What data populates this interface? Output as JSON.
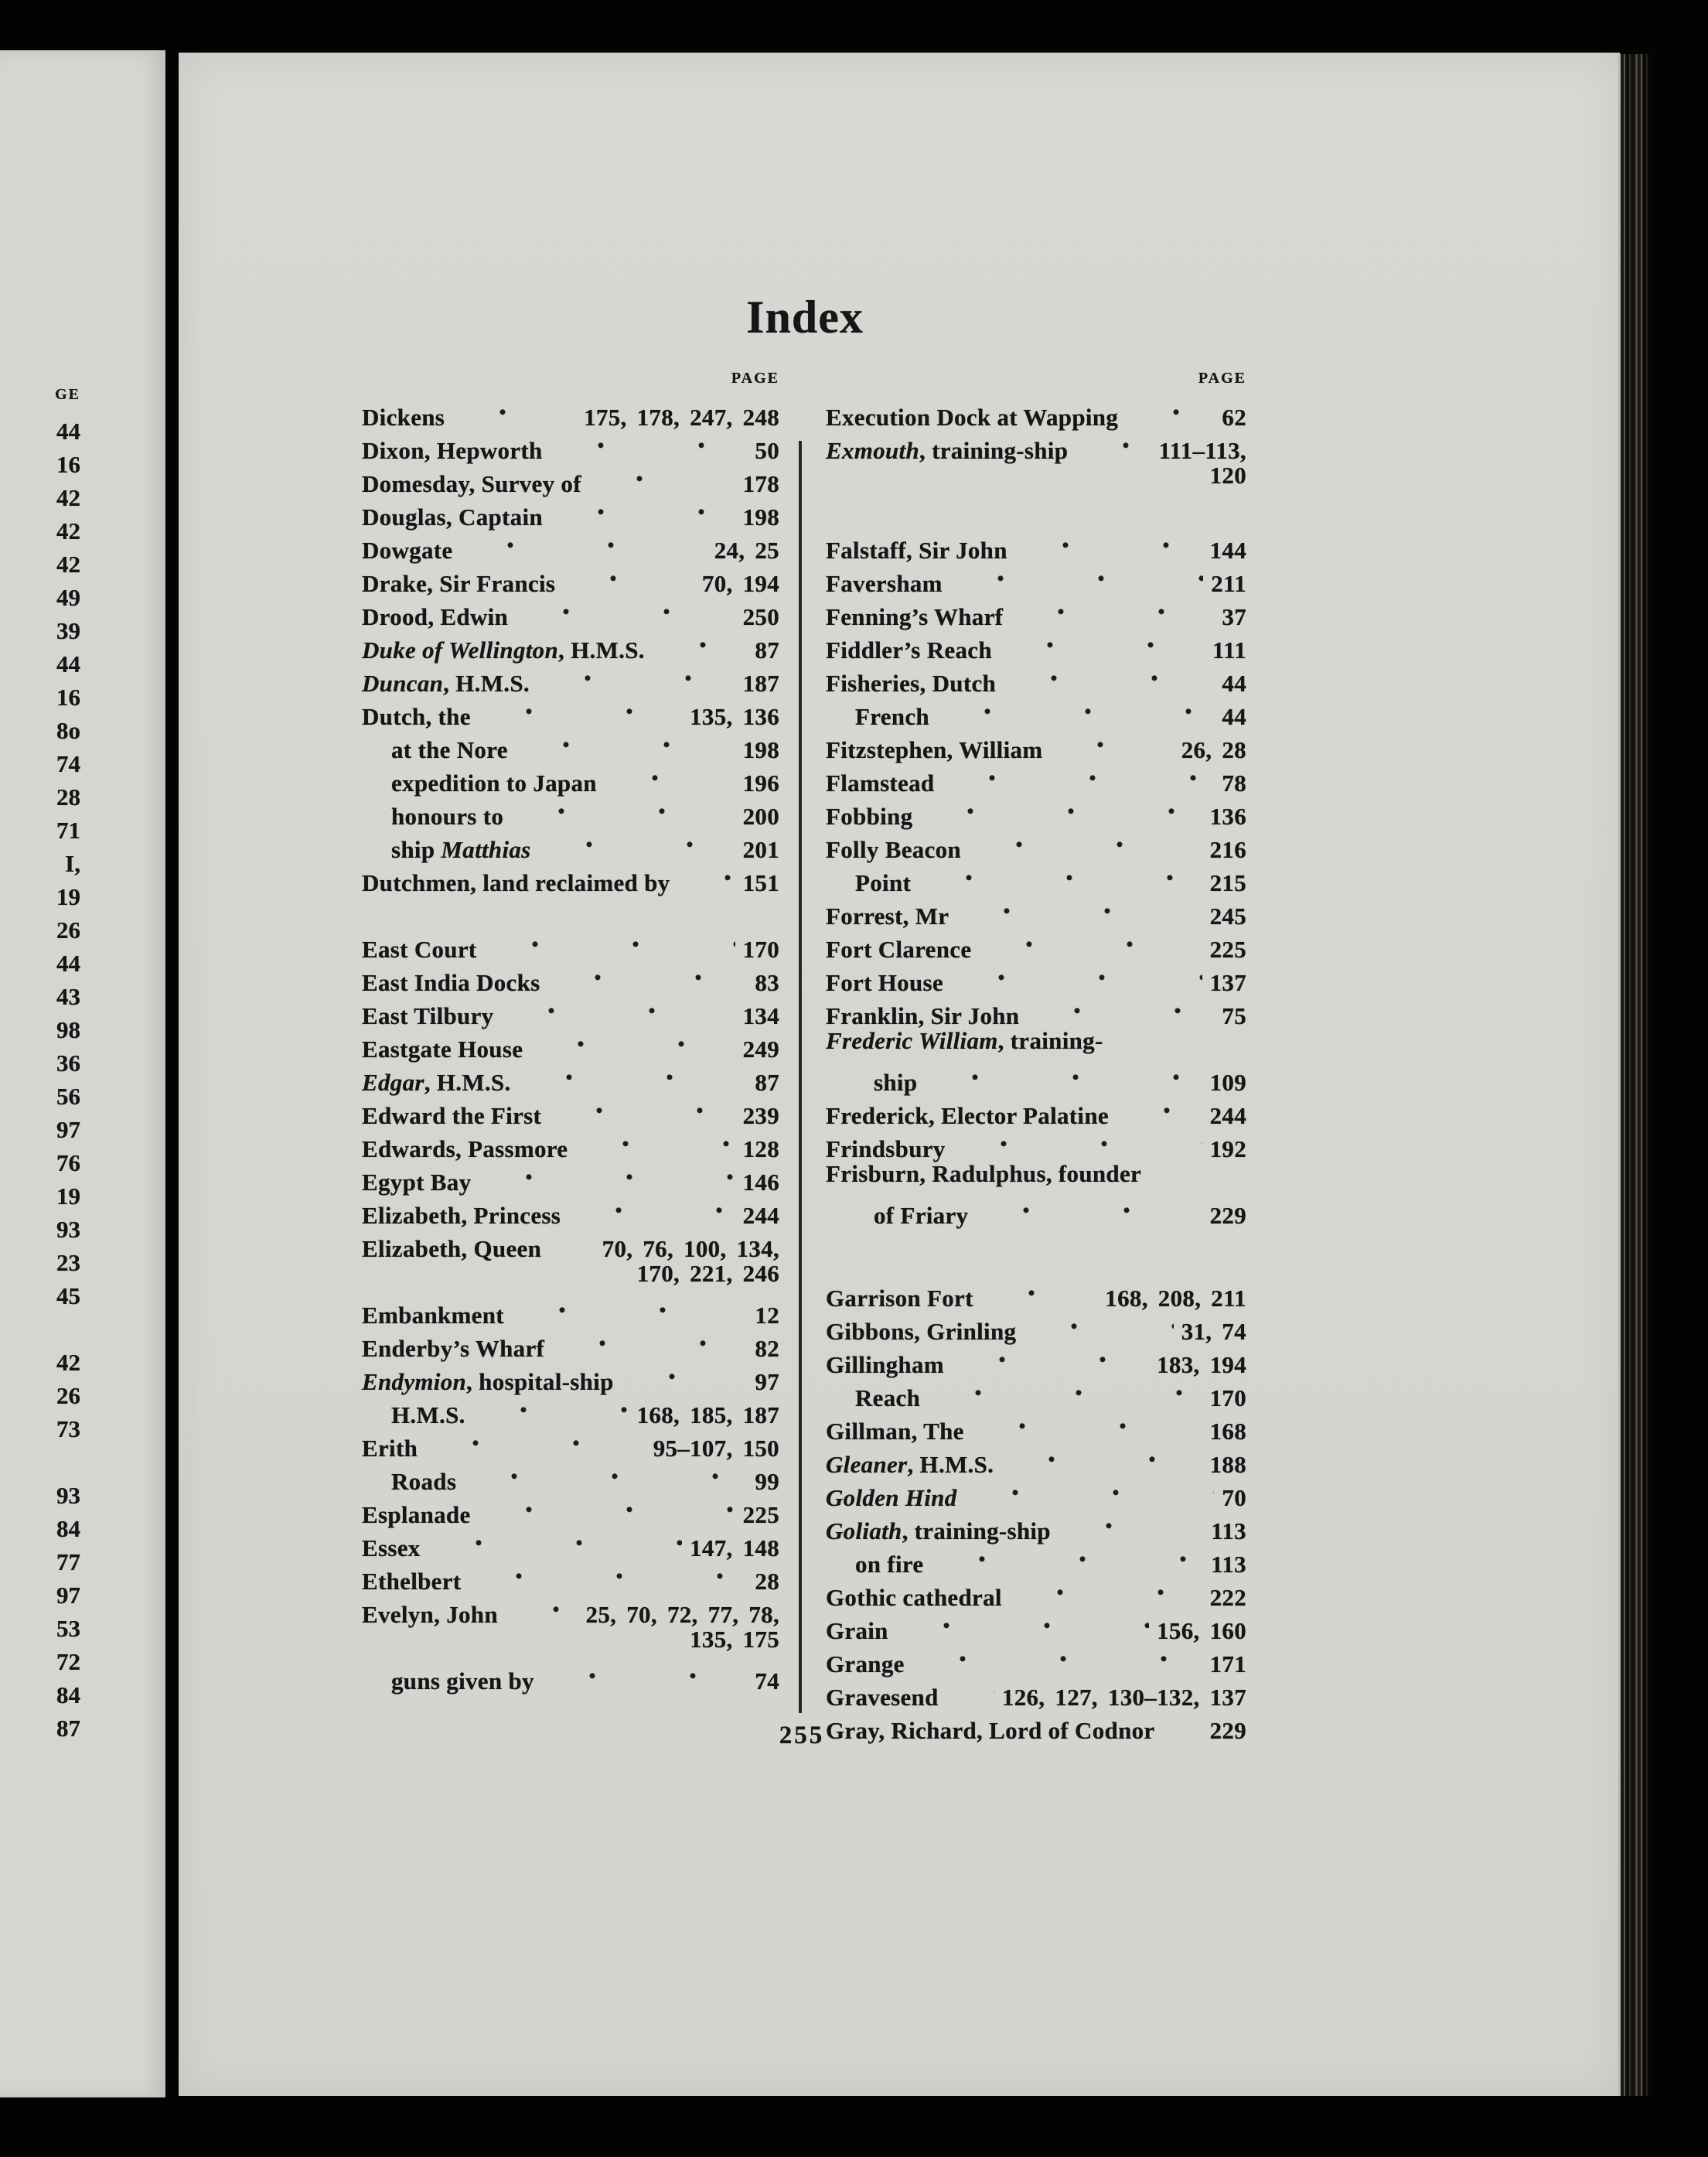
{
  "page_title": "Index",
  "page_number": "255",
  "headers": {
    "left": "PAGE",
    "right": "PAGE"
  },
  "colors": {
    "paper": "#d6d5d1",
    "ink": "#161616",
    "background": "#030303"
  },
  "left_margin_numbers": [
    "GE",
    "44",
    "16",
    "42",
    "42",
    "42",
    "49",
    "39",
    "44",
    "16",
    "8o",
    "74",
    "28",
    "71",
    "I,",
    "19",
    "26",
    "44",
    "43",
    "98",
    "36",
    "56",
    "97",
    "76",
    "19",
    "93",
    "23",
    "45",
    "",
    "42",
    "26",
    "73",
    "",
    "93",
    "84",
    "77",
    "97",
    "53",
    "72",
    "84",
    "87"
  ],
  "columns": {
    "left": [
      {
        "parts": [
          {
            "t": "Dickens"
          }
        ],
        "pages": "175, 178, 247, 248"
      },
      {
        "parts": [
          {
            "t": "Dixon, Hepworth"
          }
        ],
        "pages": "50"
      },
      {
        "parts": [
          {
            "t": "Domesday, Survey of"
          }
        ],
        "pages": "178"
      },
      {
        "parts": [
          {
            "t": "Douglas, Captain"
          }
        ],
        "pages": "198"
      },
      {
        "parts": [
          {
            "t": "Dowgate"
          }
        ],
        "pages": "24, 25"
      },
      {
        "parts": [
          {
            "t": "Drake, Sir Francis"
          }
        ],
        "pages": "70, 194"
      },
      {
        "parts": [
          {
            "t": "Drood, Edwin"
          }
        ],
        "pages": "250"
      },
      {
        "parts": [
          {
            "t": "Duke of Wellington",
            "i": true
          },
          {
            "t": ", H.M.S."
          }
        ],
        "pages": "87"
      },
      {
        "parts": [
          {
            "t": "Duncan",
            "i": true
          },
          {
            "t": ", H.M.S."
          }
        ],
        "pages": "187"
      },
      {
        "parts": [
          {
            "t": "Dutch, the"
          }
        ],
        "pages": "135, 136"
      },
      {
        "parts": [
          {
            "t": "at the Nore"
          }
        ],
        "indent": 1,
        "pages": "198"
      },
      {
        "parts": [
          {
            "t": "expedition to Japan"
          }
        ],
        "indent": 1,
        "pages": "196"
      },
      {
        "parts": [
          {
            "t": "honours to"
          }
        ],
        "indent": 1,
        "pages": "200"
      },
      {
        "parts": [
          {
            "t": "ship "
          },
          {
            "t": "Matthias",
            "i": true
          }
        ],
        "indent": 1,
        "pages": "201"
      },
      {
        "parts": [
          {
            "t": "Dutchmen, land reclaimed by"
          }
        ],
        "pages": "151"
      },
      {
        "parts": [
          {
            "t": "East Court"
          }
        ],
        "pages": "170",
        "gap": 1
      },
      {
        "parts": [
          {
            "t": "East India Docks"
          }
        ],
        "pages": "83"
      },
      {
        "parts": [
          {
            "t": "East Tilbury"
          }
        ],
        "pages": "134"
      },
      {
        "parts": [
          {
            "t": "Eastgate House"
          }
        ],
        "pages": "249"
      },
      {
        "parts": [
          {
            "t": "Edgar",
            "i": true
          },
          {
            "t": ", H.M.S."
          }
        ],
        "pages": "87"
      },
      {
        "parts": [
          {
            "t": "Edward the First"
          }
        ],
        "pages": "239"
      },
      {
        "parts": [
          {
            "t": "Edwards, Passmore"
          }
        ],
        "pages": "128"
      },
      {
        "parts": [
          {
            "t": "Egypt Bay"
          }
        ],
        "pages": "146"
      },
      {
        "parts": [
          {
            "t": "Elizabeth, Princess"
          }
        ],
        "pages": "244"
      },
      {
        "parts": [
          {
            "t": "Elizabeth, Queen"
          }
        ],
        "pages": "70, 76, 100, 134,"
      },
      {
        "cont": true,
        "pages": "170, 221, 246"
      },
      {
        "parts": [
          {
            "t": "Embankment"
          }
        ],
        "pages": "12"
      },
      {
        "parts": [
          {
            "t": "Enderby’s Wharf"
          }
        ],
        "pages": "82"
      },
      {
        "parts": [
          {
            "t": "Endymion",
            "i": true
          },
          {
            "t": ", hospital-ship"
          }
        ],
        "pages": "97"
      },
      {
        "parts": [
          {
            "t": "H.M.S."
          }
        ],
        "indent": 1,
        "pages": "168, 185, 187"
      },
      {
        "parts": [
          {
            "t": "Erith"
          }
        ],
        "pages": "95–107, 150"
      },
      {
        "parts": [
          {
            "t": "Roads"
          }
        ],
        "indent": 1,
        "pages": "99"
      },
      {
        "parts": [
          {
            "t": "Esplanade"
          }
        ],
        "pages": "225"
      },
      {
        "parts": [
          {
            "t": "Essex"
          }
        ],
        "pages": "147, 148"
      },
      {
        "parts": [
          {
            "t": "Ethelbert"
          }
        ],
        "pages": "28"
      },
      {
        "parts": [
          {
            "t": "Evelyn, John"
          }
        ],
        "pages": "25, 70, 72, 77, 78,"
      },
      {
        "cont": true,
        "pages": "135, 175"
      },
      {
        "parts": [
          {
            "t": "guns given by"
          }
        ],
        "indent": 1,
        "pages": "74"
      }
    ],
    "right": [
      {
        "parts": [
          {
            "t": "Execution Dock at Wapping"
          }
        ],
        "pages": "62"
      },
      {
        "parts": [
          {
            "t": "Exmouth",
            "i": true
          },
          {
            "t": ", training-ship"
          }
        ],
        "pages": "111–113,"
      },
      {
        "cont": true,
        "pages": "120"
      },
      {
        "parts": [
          {
            "t": "Falstaff, Sir John"
          }
        ],
        "pages": "144",
        "gap": 1
      },
      {
        "parts": [
          {
            "t": "Faversham"
          }
        ],
        "pages": "211"
      },
      {
        "parts": [
          {
            "t": "Fenning’s Wharf"
          }
        ],
        "pages": "37"
      },
      {
        "parts": [
          {
            "t": "Fiddler’s Reach"
          }
        ],
        "pages": "111"
      },
      {
        "parts": [
          {
            "t": "Fisheries, Dutch"
          }
        ],
        "pages": "44"
      },
      {
        "parts": [
          {
            "t": "French"
          }
        ],
        "indent": 1,
        "pages": "44"
      },
      {
        "parts": [
          {
            "t": "Fitzstephen, William"
          }
        ],
        "pages": "26, 28"
      },
      {
        "parts": [
          {
            "t": "Flamstead"
          }
        ],
        "pages": "78"
      },
      {
        "parts": [
          {
            "t": "Fobbing"
          }
        ],
        "pages": "136"
      },
      {
        "parts": [
          {
            "t": "Folly Beacon"
          }
        ],
        "pages": "216"
      },
      {
        "parts": [
          {
            "t": "Point"
          }
        ],
        "indent": 1,
        "pages": "215"
      },
      {
        "parts": [
          {
            "t": "Forrest, Mr"
          }
        ],
        "pages": "245"
      },
      {
        "parts": [
          {
            "t": "Fort Clarence"
          }
        ],
        "pages": "225"
      },
      {
        "parts": [
          {
            "t": "Fort House"
          }
        ],
        "pages": "137"
      },
      {
        "parts": [
          {
            "t": "Franklin, Sir John"
          }
        ],
        "pages": "75"
      },
      {
        "parts": [
          {
            "t": "Frederic William",
            "i": true
          },
          {
            "t": ", training-"
          }
        ],
        "hang": true
      },
      {
        "parts": [
          {
            "t": "ship"
          }
        ],
        "indent": 2,
        "pages": "109"
      },
      {
        "parts": [
          {
            "t": "Frederick, Elector Palatine"
          }
        ],
        "pages": "244"
      },
      {
        "parts": [
          {
            "t": "Frindsbury"
          }
        ],
        "pages": "192"
      },
      {
        "parts": [
          {
            "t": "Frisburn, Radulphus, founder"
          }
        ],
        "hang": true
      },
      {
        "parts": [
          {
            "t": "of Friary"
          }
        ],
        "indent": 2,
        "pages": "229"
      },
      {
        "parts": [
          {
            "t": "Garrison Fort"
          }
        ],
        "pages": "168, 208, 211",
        "gap": 2
      },
      {
        "parts": [
          {
            "t": "Gibbons, Grinling"
          }
        ],
        "pages": "31, 74"
      },
      {
        "parts": [
          {
            "t": "Gillingham"
          }
        ],
        "pages": "183, 194"
      },
      {
        "parts": [
          {
            "t": "Reach"
          }
        ],
        "indent": 1,
        "pages": "170"
      },
      {
        "parts": [
          {
            "t": "Gillman, The"
          }
        ],
        "pages": "168"
      },
      {
        "parts": [
          {
            "t": "Gleaner",
            "i": true
          },
          {
            "t": ", H.M.S."
          }
        ],
        "pages": "188"
      },
      {
        "parts": [
          {
            "t": "Golden Hind",
            "i": true
          }
        ],
        "pages": "70"
      },
      {
        "parts": [
          {
            "t": "Goliath",
            "i": true
          },
          {
            "t": ", training-ship"
          }
        ],
        "pages": "113"
      },
      {
        "parts": [
          {
            "t": "on fire"
          }
        ],
        "indent": 1,
        "pages": "113"
      },
      {
        "parts": [
          {
            "t": "Gothic cathedral"
          }
        ],
        "pages": "222"
      },
      {
        "parts": [
          {
            "t": "Grain"
          }
        ],
        "pages": "156, 160"
      },
      {
        "parts": [
          {
            "t": "Grange"
          }
        ],
        "pages": "171"
      },
      {
        "parts": [
          {
            "t": "Gravesend"
          }
        ],
        "pages": "126, 127, 130–132, 137"
      },
      {
        "parts": [
          {
            "t": "Gray, Richard, Lord of Codnor"
          }
        ],
        "pages": "229"
      }
    ]
  }
}
